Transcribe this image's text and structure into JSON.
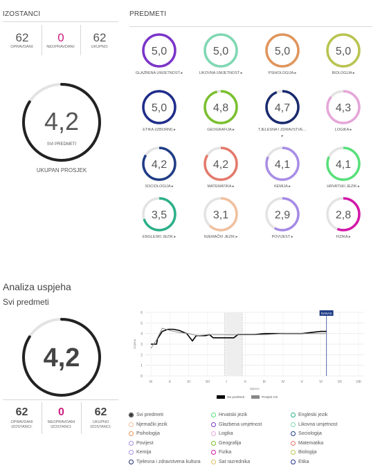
{
  "izostanci": {
    "title": "IZOSTANCI",
    "items": [
      {
        "value": "62",
        "label": "OPRAVDANI:"
      },
      {
        "value": "0",
        "label": "NEOPRAVDANI:"
      },
      {
        "value": "62",
        "label": "UKUPNO:"
      }
    ]
  },
  "overall": {
    "value": "4,2",
    "sublabel": "SVI PREDMETI",
    "caption": "UKUPAN PROSJEK",
    "fraction": 0.84
  },
  "predmeti": {
    "title": "PREDMETI",
    "subjects": [
      {
        "grade": "5,0",
        "name": "GLAZBENA UMJETNOST ▸",
        "color": "#7b35c9",
        "fraction": 1.0
      },
      {
        "grade": "5,0",
        "name": "LIKOVNA UMJETNOST ▸",
        "color": "#7fd8b3",
        "fraction": 1.0
      },
      {
        "grade": "5,0",
        "name": "PSIHOLOGIJA ▸",
        "color": "#e0955c",
        "fraction": 1.0
      },
      {
        "grade": "5,0",
        "name": "BIOLOGIJA ▸",
        "color": "#b9c44f",
        "fraction": 1.0
      },
      {
        "grade": "5,0",
        "name": "ETIKA (IZBORNI) ▸",
        "color": "#1f2d8a",
        "fraction": 1.0
      },
      {
        "grade": "4,8",
        "name": "GEOGRAFIJA ▸",
        "color": "#7ac02e",
        "fraction": 0.96
      },
      {
        "grade": "4,7",
        "name": "TJELESNA I ZDRAVSTVE… ▸",
        "color": "#1a2a6e",
        "fraction": 0.94
      },
      {
        "grade": "4,3",
        "name": "LOGIKA ▸",
        "color": "#e6a6d8",
        "fraction": 0.86
      },
      {
        "grade": "4,2",
        "name": "SOCIOLOGIJA ▸",
        "color": "#1f3c86",
        "fraction": 0.84
      },
      {
        "grade": "4,2",
        "name": "MATEMATIKA ▸",
        "color": "#e47a6b",
        "fraction": 0.84
      },
      {
        "grade": "4,1",
        "name": "KEMIJA ▸",
        "color": "#a98ee6",
        "fraction": 0.82
      },
      {
        "grade": "4,1",
        "name": "HRVATSKI JEZIK ▸",
        "color": "#58e07a",
        "fraction": 0.82
      },
      {
        "grade": "3,5",
        "name": "ENGLESKI JEZIK ▸",
        "color": "#2bb089",
        "fraction": 0.7
      },
      {
        "grade": "3,1",
        "name": "NJEMAČKI JEZIK ▸",
        "color": "#f0c09e",
        "fraction": 0.62
      },
      {
        "grade": "2,9",
        "name": "POVIJEST ▸",
        "color": "#a58ae6",
        "fraction": 0.58
      },
      {
        "grade": "2,8",
        "name": "FIZIKA ▸",
        "color": "#d316a8",
        "fraction": 0.56
      }
    ]
  },
  "analiza": {
    "title": "Analiza uspjeha",
    "subtitle": "Svi predmeti",
    "value": "4,2",
    "fraction": 0.84,
    "stats": [
      {
        "value": "62",
        "label1": "OPRAVDANI",
        "label2": "IZOSTANCI:"
      },
      {
        "value": "0",
        "label1": "NEOPRAVDANI",
        "label2": "IZOSTANCI:"
      },
      {
        "value": "62",
        "label1": "UKUPNO",
        "label2": "IZOSTANCI:"
      }
    ]
  },
  "chart_data": {
    "type": "line",
    "ylabel": "Ocjena",
    "xlabel": "Mjesec",
    "categories": [
      "IX",
      "X",
      "XI",
      "XII",
      "I",
      "II",
      "III",
      "IV",
      "V",
      "VI",
      "VII",
      "VIII"
    ],
    "yticks": [
      0,
      1,
      2,
      3,
      4,
      5,
      6
    ],
    "ylim": [
      0,
      6
    ],
    "marker_label": "DANAS",
    "series": [
      {
        "name": "Svi predmeti",
        "color": "#000000",
        "x": [
          0.0,
          0.3,
          0.35,
          0.6,
          0.9,
          1.2,
          1.5,
          1.9,
          2.2,
          2.4,
          2.9,
          3.1,
          3.3,
          3.6,
          3.9,
          4.4,
          4.6,
          5.0,
          5.5,
          6.0,
          6.5,
          7.0,
          7.5,
          8.0,
          8.5,
          9.0,
          9.3
        ],
        "y": [
          3.0,
          3.0,
          3.5,
          4.2,
          4.4,
          4.4,
          4.3,
          4.0,
          3.3,
          3.8,
          3.8,
          3.9,
          3.6,
          3.6,
          3.6,
          3.6,
          3.9,
          3.9,
          3.9,
          4.0,
          4.0,
          4.0,
          4.0,
          4.0,
          4.1,
          4.2,
          4.2
        ]
      },
      {
        "name": "Prosjek 3.D",
        "color": "#888888",
        "x": [
          0.0,
          0.3,
          0.6,
          1.0,
          1.5,
          2.0,
          2.5,
          3.0,
          3.5,
          4.0,
          4.5,
          5.0,
          6.0,
          7.0,
          8.0,
          9.0,
          9.3
        ],
        "y": [
          2.6,
          3.4,
          4.5,
          4.3,
          4.1,
          4.0,
          3.8,
          3.9,
          3.9,
          3.9,
          3.9,
          3.9,
          3.9,
          4.0,
          4.0,
          4.0,
          4.0
        ]
      }
    ]
  },
  "legend": [
    {
      "label": "Svi predmeti",
      "color": "#333333",
      "selected": true
    },
    {
      "label": "Hrvatski jezik",
      "color": "#58e07a"
    },
    {
      "label": "Engleski jezik",
      "color": "#2bb089"
    },
    {
      "label": "Njemački jezik",
      "color": "#f0c09e"
    },
    {
      "label": "Glazbena umjetnost",
      "color": "#7b35c9"
    },
    {
      "label": "Likovna umjetnost",
      "color": "#7fd8b3"
    },
    {
      "label": "Psihologija",
      "color": "#e0955c"
    },
    {
      "label": "Logika",
      "color": "#e6a6d8"
    },
    {
      "label": "Sociologija",
      "color": "#1f3c86"
    },
    {
      "label": "Povijest",
      "color": "#a58ae6"
    },
    {
      "label": "Geografija",
      "color": "#7ac02e"
    },
    {
      "label": "Matematika",
      "color": "#e47a6b"
    },
    {
      "label": "Kemija",
      "color": "#a98ee6"
    },
    {
      "label": "Fizika",
      "color": "#d316a8"
    },
    {
      "label": "Biologija",
      "color": "#b9c44f"
    },
    {
      "label": "Tjelesna i zdravstvena kultura",
      "color": "#1a2a6e"
    },
    {
      "label": "Sat razrednika",
      "color": "#e0c060"
    },
    {
      "label": "Etika",
      "color": "#1f2d8a"
    }
  ]
}
